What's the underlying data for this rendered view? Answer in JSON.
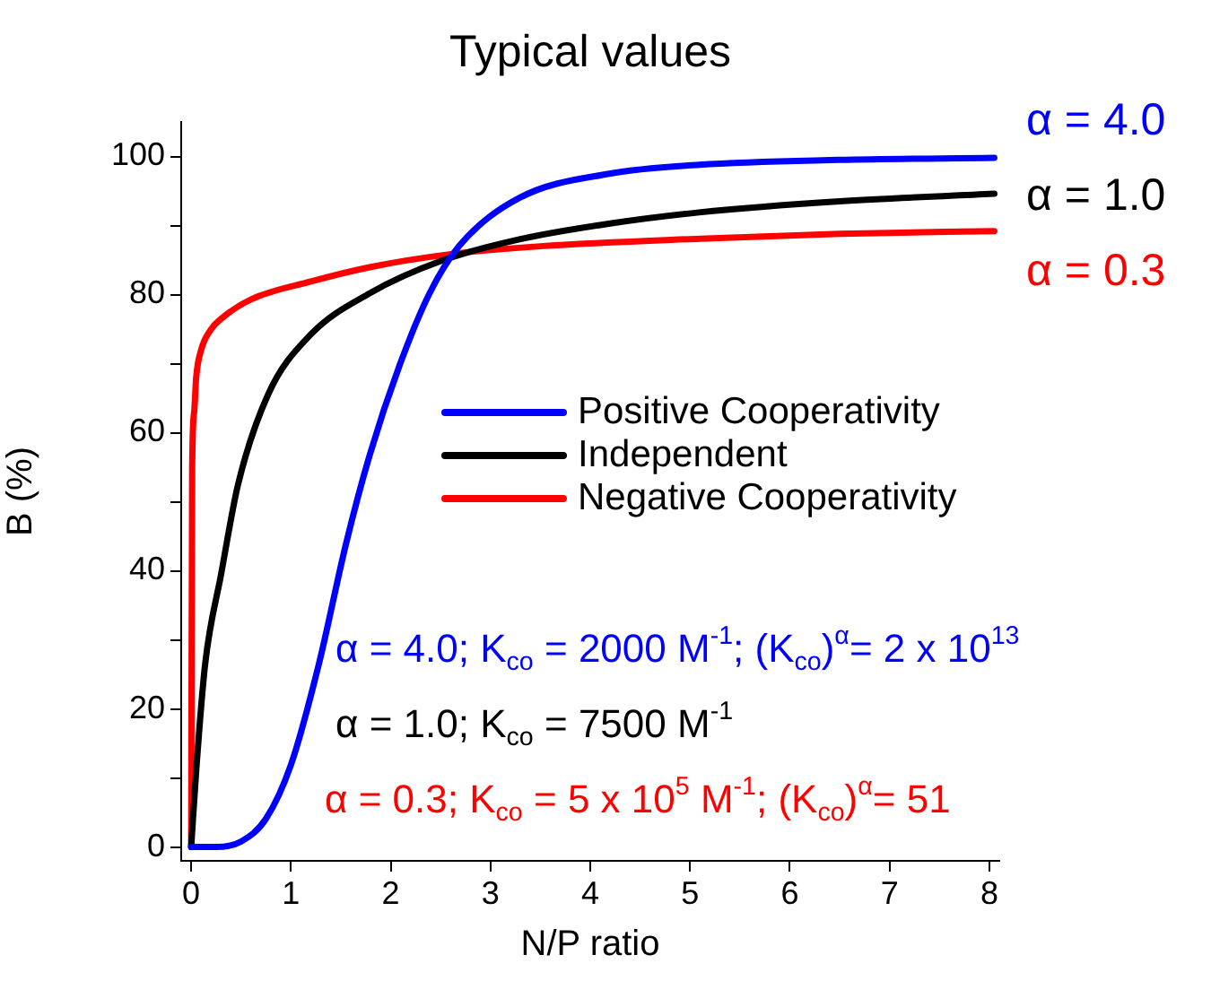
{
  "chart_data": {
    "type": "line",
    "title": "Typical values",
    "xlabel": "N/P ratio",
    "ylabel": "B (%)",
    "xlim": [
      -0.1,
      8.1
    ],
    "xticks": [
      0,
      1,
      2,
      3,
      4,
      5,
      6,
      7,
      8
    ],
    "ylim": [
      -2,
      105
    ],
    "yticks": [
      0,
      {
        "value": 10,
        "label": null
      },
      20,
      {
        "value": 30,
        "label": null
      },
      40,
      {
        "value": 50,
        "label": null
      },
      60,
      {
        "value": 70,
        "label": null
      },
      80,
      {
        "value": 90,
        "label": null
      },
      100
    ],
    "grid": false,
    "legend": "right",
    "marker": "none",
    "line_style": "solid",
    "series": [
      {
        "name": "Positive Cooperativity",
        "color": "#0000ff",
        "x": [
          0,
          0.25,
          0.5,
          0.75,
          1,
          1.28,
          1.55,
          1.79,
          2.09,
          2.39,
          2.69,
          3.29,
          4.19,
          5.09,
          6.5,
          8.05
        ],
        "values": [
          0,
          0,
          0.8,
          4.1,
          11.9,
          26.5,
          43.8,
          56.8,
          69.8,
          80.2,
          87.1,
          94,
          97.5,
          98.8,
          99.5,
          99.8
        ]
      },
      {
        "name": "Independent",
        "color": "#000000",
        "x": [
          0,
          0.05,
          0.14,
          0.3,
          0.47,
          0.77,
          1.19,
          1.79,
          2.51,
          3.29,
          4.2,
          5.09,
          6.5,
          8.05
        ],
        "values": [
          0,
          11,
          26.5,
          39.5,
          52.5,
          65.5,
          74.1,
          80.2,
          84.9,
          88,
          90.3,
          91.9,
          93.5,
          94.6
        ]
      },
      {
        "name": "Negative Cooperativity",
        "color": "#ff0000",
        "x": [
          0,
          0.01,
          0.03,
          0.05,
          0.1,
          0.2,
          0.3,
          0.6,
          1.2,
          1.8,
          2.57,
          3.5,
          5.1,
          6.5,
          8.05
        ],
        "values": [
          0,
          55,
          63,
          68,
          72,
          75,
          76.5,
          79.3,
          81.9,
          84,
          85.8,
          87,
          88.1,
          88.8,
          89.2
        ]
      }
    ],
    "annotations": [
      "α = 4.0",
      "α = 1.0",
      "α = 0.3",
      "α = 4.0; K$_{co}$ = 2000 M$^{-1}$; (K$_{co}$)$^{α}$= 2 x 10$^{13}$",
      "α = 1.0; K$_{co}$ = 7500 M$^{-1}$",
      "α = 0.3; K$_{co}$ = 5 x 10$^{5}$ M$^{-1}$; (K$_{co}$)$^{α}$= 51"
    ]
  }
}
